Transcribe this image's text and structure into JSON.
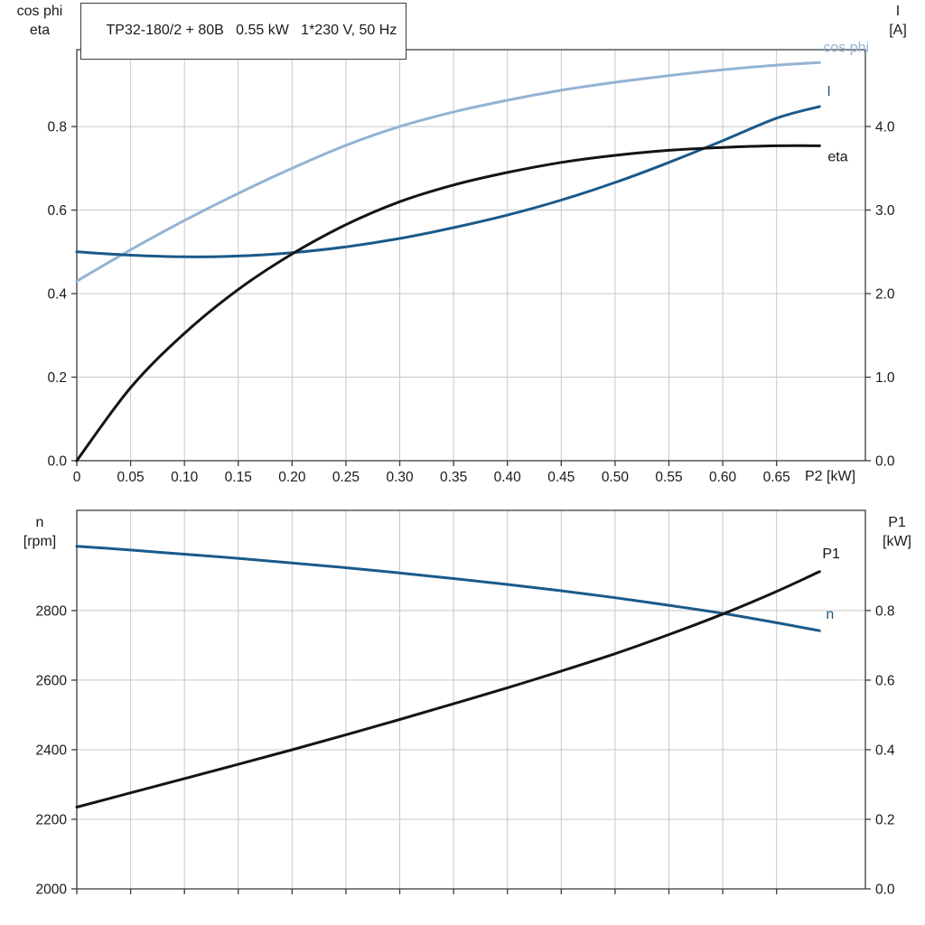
{
  "title": "TP32-180/2 + 80B   0.55 kW   1*230 V, 50 Hz",
  "labels": {
    "top_left_line1": "cos phi",
    "top_left_line2": "eta",
    "top_right_line1": "I",
    "top_right_line2": "[A]",
    "bottom_left_line1": "n",
    "bottom_left_line2": "[rpm]",
    "bottom_right_line1": "P1",
    "bottom_right_line2": "[kW]",
    "x_axis_end": "P2 [kW]"
  },
  "colors": {
    "grid": "#c8c8c8",
    "frame": "#3c3c3c",
    "light_blue": "#93b3d3",
    "dark_blue": "#1a5a8a",
    "black": "#141414"
  },
  "chart_data": [
    {
      "type": "line",
      "title": "TP32-180/2 + 80B   0.55 kW   1*230 V, 50 Hz",
      "xlabel": "P2 [kW]",
      "axes": {
        "x": {
          "range": [
            0,
            0.7325
          ],
          "ticks": [
            0,
            0.05,
            0.1,
            0.15,
            0.2,
            0.25,
            0.3,
            0.35,
            0.4,
            0.45,
            0.5,
            0.55,
            0.6,
            0.65
          ],
          "tick_labels": [
            "0",
            "0.05",
            "0.10",
            "0.15",
            "0.20",
            "0.25",
            "0.30",
            "0.35",
            "0.40",
            "0.45",
            "0.50",
            "0.55",
            "0.60",
            "0.65"
          ]
        },
        "left": {
          "label": "cos phi / eta",
          "range": [
            0,
            0.984
          ],
          "ticks": [
            0,
            0.2,
            0.4,
            0.6,
            0.8
          ],
          "tick_labels": [
            "0.0",
            "0.2",
            "0.4",
            "0.6",
            "0.8"
          ]
        },
        "right": {
          "label": "I [A]",
          "range": [
            0,
            4.92
          ],
          "ticks": [
            0,
            1,
            2,
            3,
            4
          ],
          "tick_labels": [
            "0.0",
            "1.0",
            "2.0",
            "3.0",
            "4.0"
          ]
        }
      },
      "series": [
        {
          "name": "cos phi",
          "axis": "left",
          "color": "#93b3d3",
          "label_dx": 4,
          "label_dy": -12,
          "points": [
            [
              0,
              0.43
            ],
            [
              0.05,
              0.505
            ],
            [
              0.1,
              0.575
            ],
            [
              0.15,
              0.64
            ],
            [
              0.2,
              0.7
            ],
            [
              0.25,
              0.755
            ],
            [
              0.3,
              0.8
            ],
            [
              0.35,
              0.835
            ],
            [
              0.4,
              0.863
            ],
            [
              0.45,
              0.887
            ],
            [
              0.5,
              0.906
            ],
            [
              0.55,
              0.922
            ],
            [
              0.6,
              0.936
            ],
            [
              0.65,
              0.947
            ],
            [
              0.69,
              0.953
            ]
          ]
        },
        {
          "name": "I",
          "axis": "right",
          "color": "#1a5a8a",
          "label_dx": 8,
          "label_dy": -12,
          "points": [
            [
              0,
              2.5
            ],
            [
              0.05,
              2.46
            ],
            [
              0.1,
              2.44
            ],
            [
              0.15,
              2.45
            ],
            [
              0.2,
              2.49
            ],
            [
              0.25,
              2.56
            ],
            [
              0.3,
              2.66
            ],
            [
              0.35,
              2.79
            ],
            [
              0.4,
              2.94
            ],
            [
              0.45,
              3.12
            ],
            [
              0.5,
              3.33
            ],
            [
              0.55,
              3.57
            ],
            [
              0.6,
              3.83
            ],
            [
              0.65,
              4.1
            ],
            [
              0.69,
              4.24
            ]
          ]
        },
        {
          "name": "eta",
          "axis": "left",
          "color": "#141414",
          "label_dx": 9,
          "label_dy": 17,
          "points": [
            [
              0,
              0.0
            ],
            [
              0.05,
              0.175
            ],
            [
              0.1,
              0.305
            ],
            [
              0.15,
              0.41
            ],
            [
              0.2,
              0.495
            ],
            [
              0.25,
              0.565
            ],
            [
              0.3,
              0.62
            ],
            [
              0.35,
              0.66
            ],
            [
              0.4,
              0.69
            ],
            [
              0.45,
              0.714
            ],
            [
              0.5,
              0.731
            ],
            [
              0.55,
              0.743
            ],
            [
              0.6,
              0.75
            ],
            [
              0.65,
              0.754
            ],
            [
              0.69,
              0.754
            ]
          ]
        }
      ]
    },
    {
      "type": "line",
      "title": "Speed and input power vs P2",
      "xlabel": "",
      "axes": {
        "x": {
          "range": [
            0,
            0.7325
          ],
          "ticks": [
            0,
            0.05,
            0.1,
            0.15,
            0.2,
            0.25,
            0.3,
            0.35,
            0.4,
            0.45,
            0.5,
            0.55,
            0.6,
            0.65
          ],
          "tick_labels": []
        },
        "left": {
          "label": "n [rpm]",
          "range": [
            2000,
            3088
          ],
          "ticks": [
            2000,
            2200,
            2400,
            2600,
            2800
          ],
          "tick_labels": [
            "2000",
            "2200",
            "2400",
            "2600",
            "2800"
          ]
        },
        "right": {
          "label": "P1 [kW]",
          "range": [
            0,
            1.088
          ],
          "ticks": [
            0,
            0.2,
            0.4,
            0.6,
            0.8
          ],
          "tick_labels": [
            "0.0",
            "0.2",
            "0.4",
            "0.6",
            "0.8"
          ]
        }
      },
      "series": [
        {
          "name": "n",
          "axis": "left",
          "color": "#1a5a8a",
          "label_dx": 7,
          "label_dy": -13,
          "points": [
            [
              0,
              2985
            ],
            [
              0.05,
              2974
            ],
            [
              0.1,
              2962
            ],
            [
              0.15,
              2950
            ],
            [
              0.2,
              2937
            ],
            [
              0.25,
              2923
            ],
            [
              0.3,
              2908
            ],
            [
              0.35,
              2892
            ],
            [
              0.4,
              2875
            ],
            [
              0.45,
              2857
            ],
            [
              0.5,
              2837
            ],
            [
              0.55,
              2815
            ],
            [
              0.6,
              2792
            ],
            [
              0.65,
              2765
            ],
            [
              0.69,
              2742
            ]
          ]
        },
        {
          "name": "P1",
          "axis": "right",
          "color": "#141414",
          "label_dx": 3,
          "label_dy": -15,
          "points": [
            [
              0,
              0.235
            ],
            [
              0.05,
              0.276
            ],
            [
              0.1,
              0.317
            ],
            [
              0.15,
              0.358
            ],
            [
              0.2,
              0.4
            ],
            [
              0.25,
              0.443
            ],
            [
              0.3,
              0.487
            ],
            [
              0.35,
              0.532
            ],
            [
              0.4,
              0.578
            ],
            [
              0.45,
              0.626
            ],
            [
              0.5,
              0.676
            ],
            [
              0.55,
              0.731
            ],
            [
              0.6,
              0.79
            ],
            [
              0.65,
              0.855
            ],
            [
              0.69,
              0.912
            ]
          ]
        }
      ]
    }
  ]
}
